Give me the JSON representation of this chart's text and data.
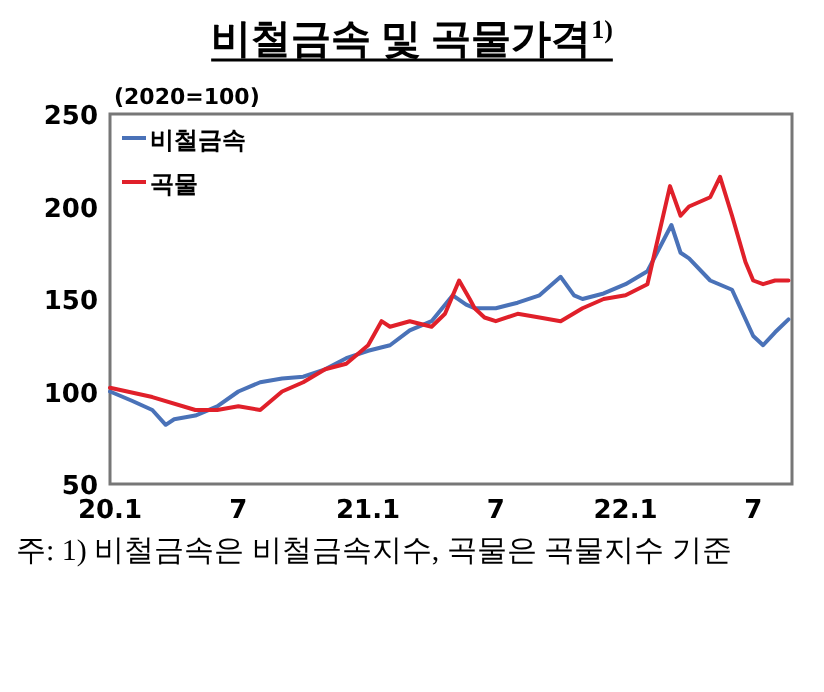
{
  "chart_data": {
    "type": "line",
    "title": "비철금속 및 곡물가격$^{1)}$",
    "ylabel": "(2020=100)",
    "annotations": [
      "주: 1) 비철금속은 비철금속지수, 곡물은 곡물지수 기준"
    ],
    "legend": "top left",
    "grid": false,
    "marker": "none",
    "line_style": "solid",
    "xlim": [
      "2020-01-01",
      "2022-08-25"
    ],
    "xticks": [
      {
        "value": "2020-01",
        "label": "20.1"
      },
      {
        "value": "2020-07",
        "label": "7"
      },
      {
        "value": "2021-01",
        "label": "21.1"
      },
      {
        "value": "2021-07",
        "label": "7"
      },
      {
        "value": "2022-01",
        "label": "22.1"
      },
      {
        "value": "2022-07",
        "label": "7"
      }
    ],
    "ylim": [
      50,
      250
    ],
    "yticks": [
      50,
      100,
      150,
      200,
      250
    ],
    "series": [
      {
        "name": "비철금속",
        "color": "#4a72b8",
        "x": [
          "2020-01-01",
          "2020-02-01",
          "2020-03-01",
          "2020-03-20",
          "2020-04-01",
          "2020-05-01",
          "2020-06-01",
          "2020-07-01",
          "2020-08-01",
          "2020-09-01",
          "2020-10-01",
          "2020-11-01",
          "2020-12-01",
          "2021-01-01",
          "2021-02-01",
          "2021-03-01",
          "2021-04-01",
          "2021-05-01",
          "2021-05-20",
          "2021-06-01",
          "2021-07-01",
          "2021-08-01",
          "2021-09-01",
          "2021-10-01",
          "2021-10-20",
          "2021-11-01",
          "2021-12-01",
          "2022-01-01",
          "2022-02-01",
          "2022-03-07",
          "2022-03-20",
          "2022-04-01",
          "2022-05-01",
          "2022-06-01",
          "2022-07-01",
          "2022-07-15",
          "2022-08-01",
          "2022-08-20"
        ],
        "values": [
          100,
          95,
          90,
          82,
          85,
          87,
          92,
          100,
          105,
          107,
          108,
          112,
          118,
          122,
          125,
          133,
          138,
          152,
          147,
          145,
          145,
          148,
          152,
          162,
          152,
          150,
          153,
          158,
          165,
          190,
          175,
          172,
          160,
          155,
          130,
          125,
          132,
          139
        ]
      },
      {
        "name": "곡물",
        "color": "#e0202a",
        "x": [
          "2020-01-01",
          "2020-03-01",
          "2020-05-01",
          "2020-06-01",
          "2020-07-01",
          "2020-08-01",
          "2020-09-01",
          "2020-10-01",
          "2020-11-01",
          "2020-12-01",
          "2021-01-01",
          "2021-01-20",
          "2021-02-01",
          "2021-03-01",
          "2021-04-01",
          "2021-04-20",
          "2021-05-10",
          "2021-05-25",
          "2021-06-01",
          "2021-06-15",
          "2021-07-01",
          "2021-08-01",
          "2021-09-01",
          "2021-10-01",
          "2021-11-01",
          "2021-12-01",
          "2022-01-01",
          "2022-02-01",
          "2022-03-05",
          "2022-03-20",
          "2022-04-01",
          "2022-05-01",
          "2022-05-15",
          "2022-06-01",
          "2022-06-20",
          "2022-07-01",
          "2022-07-15",
          "2022-08-01",
          "2022-08-20"
        ],
        "values": [
          102,
          97,
          90,
          90,
          92,
          90,
          100,
          105,
          112,
          115,
          125,
          138,
          135,
          138,
          135,
          142,
          160,
          150,
          145,
          140,
          138,
          142,
          140,
          138,
          145,
          150,
          152,
          158,
          211,
          195,
          200,
          205,
          216,
          195,
          170,
          160,
          158,
          160,
          160
        ]
      }
    ]
  }
}
